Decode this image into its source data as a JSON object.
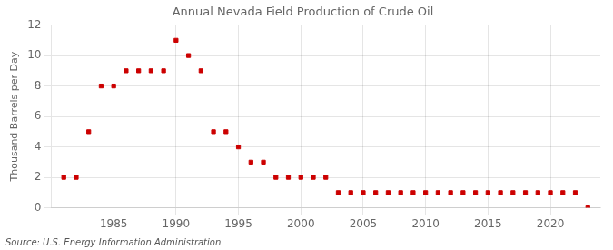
{
  "chart_data": {
    "type": "scatter",
    "title": "Annual Nevada Field Production of Crude Oil",
    "y_label": "Thousand Barrels per Day",
    "annotations": [
      "Source: U.S. Energy Information Administration"
    ],
    "x": [
      1981,
      1982,
      1983,
      1984,
      1985,
      1986,
      1987,
      1988,
      1989,
      1990,
      1991,
      1992,
      1993,
      1994,
      1995,
      1996,
      1997,
      1998,
      1999,
      2000,
      2001,
      2002,
      2003,
      2004,
      2005,
      2006,
      2007,
      2008,
      2009,
      2010,
      2011,
      2012,
      2013,
      2014,
      2015,
      2016,
      2017,
      2018,
      2019,
      2020,
      2021,
      2022,
      2023
    ],
    "values": [
      2,
      2,
      5,
      8,
      8,
      9,
      9,
      9,
      9,
      11,
      10,
      9,
      5,
      5,
      4,
      3,
      3,
      2,
      2,
      2,
      2,
      2,
      1,
      1,
      1,
      1,
      1,
      1,
      1,
      1,
      1,
      1,
      1,
      1,
      1,
      1,
      1,
      1,
      1,
      1,
      1,
      1,
      0
    ],
    "color": "#cc0000",
    "marker": "square",
    "xlim": [
      1980,
      2024
    ],
    "xticks": [
      1985,
      1990,
      1995,
      2000,
      2005,
      2010,
      2015,
      2020
    ],
    "ylim": [
      0,
      12
    ],
    "yticks": [
      0,
      2,
      4,
      6,
      8,
      10,
      12
    ],
    "grid": true
  }
}
